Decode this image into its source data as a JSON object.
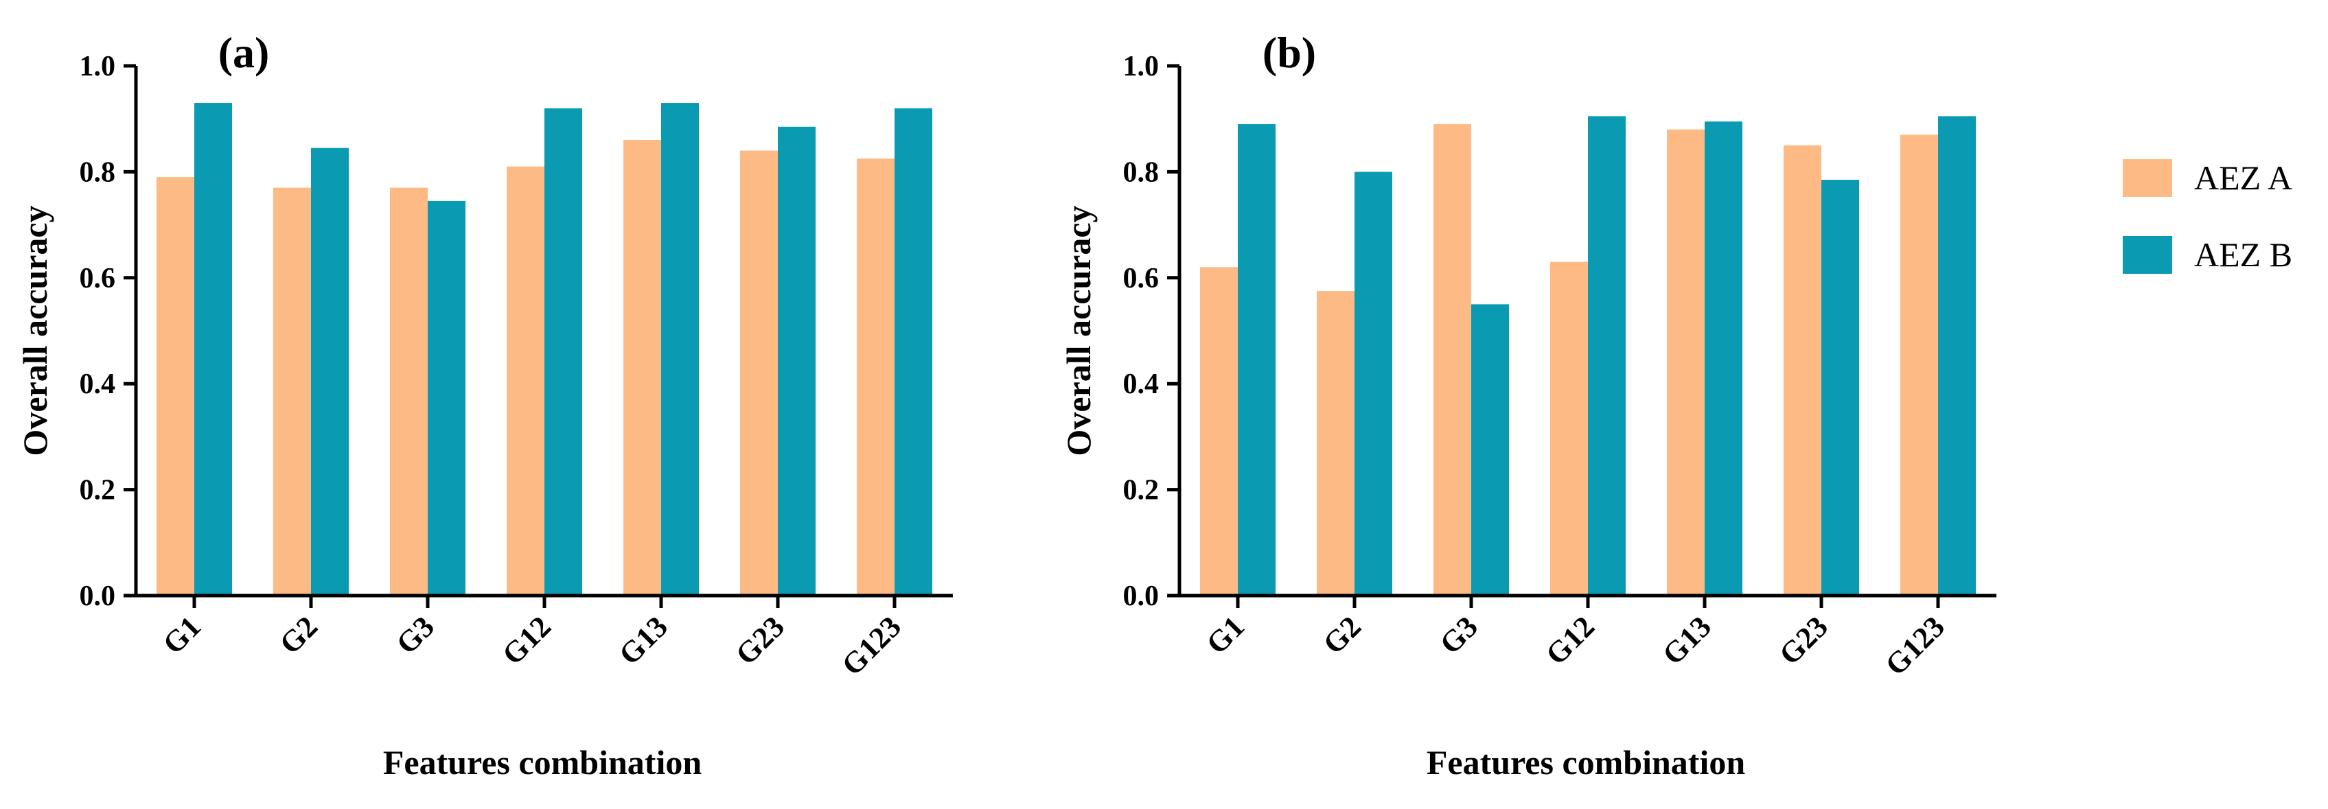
{
  "chart_data": [
    {
      "type": "bar",
      "panel_label": "(a)",
      "categories": [
        "G1",
        "G2",
        "G3",
        "G12",
        "G13",
        "G23",
        "G123"
      ],
      "series": [
        {
          "name": "AEZ A",
          "values": [
            0.79,
            0.77,
            0.77,
            0.81,
            0.86,
            0.84,
            0.825
          ]
        },
        {
          "name": "AEZ B",
          "values": [
            0.93,
            0.845,
            0.745,
            0.92,
            0.93,
            0.885,
            0.92
          ]
        }
      ],
      "xlabel": "Features combination",
      "ylabel": "Overall accuracy",
      "ylim": [
        0,
        1.0
      ],
      "yticks": [
        "0.0",
        "0.2",
        "0.4",
        "0.6",
        "0.8",
        "1.0"
      ],
      "grid": false
    },
    {
      "type": "bar",
      "panel_label": "(b)",
      "categories": [
        "G1",
        "G2",
        "G3",
        "G12",
        "G13",
        "G23",
        "G123"
      ],
      "series": [
        {
          "name": "AEZ A",
          "values": [
            0.62,
            0.575,
            0.89,
            0.63,
            0.88,
            0.85,
            0.87
          ]
        },
        {
          "name": "AEZ B",
          "values": [
            0.89,
            0.8,
            0.55,
            0.905,
            0.895,
            0.785,
            0.905
          ]
        }
      ],
      "xlabel": "Features combination",
      "ylabel": "Overall accuracy",
      "ylim": [
        0,
        1.0
      ],
      "yticks": [
        "0.0",
        "0.2",
        "0.4",
        "0.6",
        "0.8",
        "1.0"
      ],
      "grid": false
    }
  ],
  "legend": {
    "placement": "right",
    "items": [
      {
        "label": "AEZ A",
        "color": "#FDBA84"
      },
      {
        "label": "AEZ B",
        "color": "#0A9BB3"
      }
    ]
  },
  "colors": {
    "AEZ A": "#FDBA84",
    "AEZ B": "#0A9BB3",
    "axis": "#000000"
  }
}
